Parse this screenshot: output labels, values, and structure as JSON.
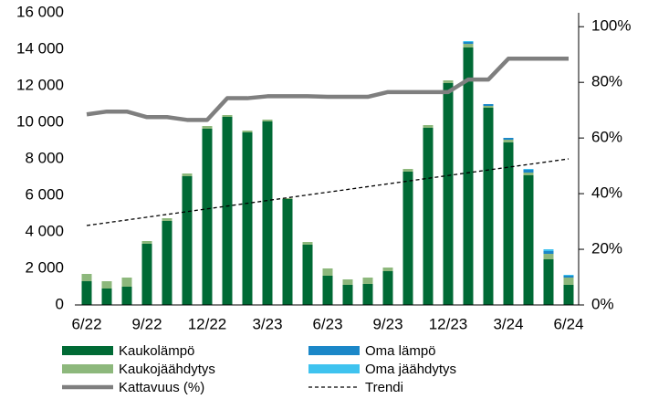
{
  "chart_data": {
    "type": "bar",
    "categories": [
      "6/22",
      null,
      null,
      "9/22",
      null,
      null,
      "12/22",
      null,
      null,
      "3/23",
      null,
      null,
      "6/23",
      null,
      null,
      "9/23",
      null,
      null,
      "12/23",
      null,
      null,
      "3/24",
      null,
      null,
      "6/24"
    ],
    "series": [
      {
        "name": "Kaukolämpö",
        "type": "bar",
        "color": "#006a35",
        "values": [
          1300,
          900,
          1000,
          3350,
          4600,
          7050,
          9650,
          10300,
          9450,
          10050,
          5800,
          3300,
          1600,
          1100,
          1150,
          1850,
          7300,
          9700,
          12150,
          14100,
          10800,
          8900,
          7100,
          2500,
          1100
        ]
      },
      {
        "name": "Kaukojäähdytys",
        "type": "bar",
        "color": "#8db87c",
        "values": [
          400,
          400,
          500,
          150,
          150,
          150,
          150,
          100,
          100,
          100,
          50,
          150,
          400,
          300,
          350,
          200,
          150,
          150,
          150,
          200,
          100,
          150,
          150,
          300,
          400
        ]
      },
      {
        "name": "Oma lämpö",
        "type": "bar",
        "color": "#1b87c8",
        "values": [
          0,
          0,
          0,
          0,
          0,
          0,
          0,
          0,
          0,
          0,
          0,
          0,
          0,
          0,
          0,
          0,
          0,
          0,
          0,
          100,
          100,
          100,
          150,
          150,
          100
        ]
      },
      {
        "name": "Oma jäähdytys",
        "type": "bar",
        "color": "#3fc3ef",
        "values": [
          0,
          0,
          0,
          0,
          0,
          0,
          0,
          0,
          0,
          0,
          0,
          0,
          0,
          0,
          0,
          0,
          0,
          0,
          0,
          50,
          0,
          0,
          50,
          100,
          50
        ]
      },
      {
        "name": "Kattavuus (%)",
        "type": "line",
        "axis": "y2",
        "color": "#7f7f7f",
        "values": [
          68.5,
          69.5,
          69.5,
          67.5,
          67.5,
          66.5,
          66.5,
          74.3,
          74.3,
          75,
          75,
          75,
          74.8,
          74.8,
          74.8,
          76.5,
          76.5,
          76.5,
          76.5,
          81,
          81,
          88.5,
          88.5,
          88.5,
          88.5
        ]
      },
      {
        "name": "Trendi",
        "type": "line",
        "dashed": true,
        "color": "#000000",
        "values": [
          4350,
          4502,
          4654,
          4806,
          4958,
          5110,
          5263,
          5415,
          5567,
          5719,
          5871,
          6023,
          6175,
          6327,
          6479,
          6631,
          6783,
          6935,
          7088,
          7240,
          7392,
          7544,
          7696,
          7848,
          8000
        ]
      }
    ],
    "ylim": [
      0,
      16000
    ],
    "yticks": [
      0,
      {
        "value": 2000,
        "label": "2 000"
      },
      {
        "value": 4000,
        "label": "4 000"
      },
      {
        "value": 6000,
        "label": "6 000"
      },
      {
        "value": 8000,
        "label": "8 000"
      },
      {
        "value": 10000,
        "label": "10 000"
      },
      {
        "value": 12000,
        "label": "12 000"
      },
      {
        "value": 14000,
        "label": "14 000"
      },
      {
        "value": 16000,
        "label": "16 000"
      }
    ],
    "y2lim": [
      0,
      105
    ],
    "y2ticks": [
      {
        "value": 0,
        "label": "0%"
      },
      {
        "value": 20,
        "label": "20%"
      },
      {
        "value": 40,
        "label": "40%"
      },
      {
        "value": 60,
        "label": "60%"
      },
      {
        "value": 80,
        "label": "80%"
      },
      {
        "value": 100,
        "label": "100%"
      }
    ],
    "legend": "bottom"
  }
}
